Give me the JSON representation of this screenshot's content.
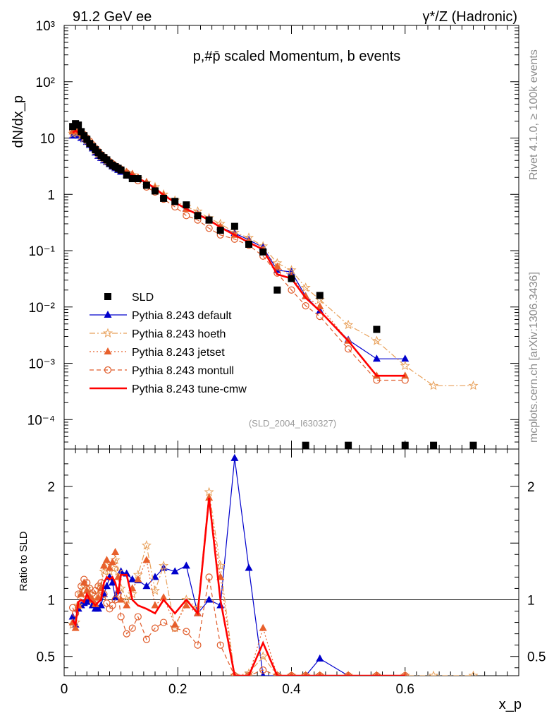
{
  "header": {
    "left": "91.2 GeV ee",
    "right": "γ*/Z (Hadronic)"
  },
  "side_texts": {
    "rivet": "Rivet 4.1.0, ≥ 100k events",
    "mcplots": "mcplots.cern.ch [arXiv:1306.3436]"
  },
  "chart_data": {
    "type": "line",
    "title": "p,#p̄ scaled Momentum, b events",
    "analysis_id": "(SLD_2004_I630327)",
    "xlabel": "x_p",
    "ylabel_main": "dN/dx_p",
    "ylabel_ratio": "Ratio to SLD",
    "xlim": [
      0,
      0.8
    ],
    "ylim_main_log": [
      3e-05,
      1000
    ],
    "ylim_ratio": [
      0.33,
      2.33
    ],
    "x_ticks": [
      "0",
      "0.2",
      "0.4",
      "0.6"
    ],
    "y_ticks_main": [
      "10⁻⁴",
      "10⁻³",
      "10⁻²",
      "10⁻¹",
      "1",
      "10",
      "10²",
      "10³"
    ],
    "y_ticks_ratio": [
      "0.5",
      "1",
      "2"
    ],
    "legend": [
      "SLD",
      "Pythia 8.243 default",
      "Pythia 8.243 hoeth",
      "Pythia 8.243 jetset",
      "Pythia 8.243 montull",
      "Pythia 8.243 tune-cmw"
    ],
    "x": [
      0.015,
      0.02,
      0.025,
      0.03,
      0.035,
      0.04,
      0.045,
      0.05,
      0.055,
      0.06,
      0.065,
      0.07,
      0.075,
      0.08,
      0.085,
      0.09,
      0.095,
      0.1,
      0.11,
      0.12,
      0.13,
      0.145,
      0.16,
      0.175,
      0.195,
      0.215,
      0.235,
      0.255,
      0.275,
      0.3,
      0.325,
      0.35,
      0.375,
      0.4,
      0.425,
      0.45,
      0.5,
      0.55,
      0.6
    ],
    "data": {
      "name": "SLD",
      "x": [
        0.015,
        0.02,
        0.025,
        0.03,
        0.035,
        0.04,
        0.045,
        0.05,
        0.055,
        0.06,
        0.065,
        0.07,
        0.075,
        0.08,
        0.085,
        0.09,
        0.095,
        0.1,
        0.11,
        0.12,
        0.13,
        0.145,
        0.16,
        0.175,
        0.195,
        0.215,
        0.235,
        0.255,
        0.275,
        0.3,
        0.325,
        0.35,
        0.375,
        0.4,
        0.425,
        0.45,
        0.5,
        0.55,
        0.6,
        0.65,
        0.72
      ],
      "values": [
        16,
        18,
        17,
        13,
        11,
        9.5,
        8,
        7,
        6.2,
        5.5,
        4.9,
        4.5,
        4.1,
        3.6,
        3.3,
        3.1,
        2.9,
        2.7,
        2.2,
        1.9,
        1.9,
        1.45,
        1.15,
        0.85,
        0.75,
        0.65,
        0.42,
        0.35,
        0.23,
        0.27,
        0.13,
        0.095,
        0.02,
        0.032,
        3.5e-05,
        0.016,
        3.5e-05,
        0.004,
        3.5e-05,
        3.5e-05,
        3.5e-05
      ]
    },
    "series": [
      {
        "name": "Pythia 8.243 default",
        "color": "#0000cc",
        "marker": "triangle",
        "dash": "solid",
        "x": [
          0.015,
          0.02,
          0.025,
          0.03,
          0.035,
          0.04,
          0.045,
          0.05,
          0.055,
          0.06,
          0.065,
          0.07,
          0.075,
          0.08,
          0.085,
          0.09,
          0.095,
          0.1,
          0.11,
          0.12,
          0.13,
          0.145,
          0.16,
          0.175,
          0.195,
          0.215,
          0.235,
          0.255,
          0.275,
          0.3,
          0.325,
          0.35,
          0.375,
          0.4,
          0.425,
          0.45,
          0.5,
          0.55,
          0.6
        ],
        "values": [
          11,
          12,
          11,
          10,
          9.5,
          8.5,
          7.5,
          6.5,
          5.5,
          4.8,
          4.4,
          4.0,
          3.7,
          3.4,
          3.1,
          2.9,
          2.7,
          2.5,
          2.2,
          2.1,
          1.85,
          1.55,
          1.25,
          0.95,
          0.72,
          0.56,
          0.45,
          0.36,
          0.26,
          0.205,
          0.155,
          0.115,
          0.045,
          0.042,
          0.0155,
          0.0085,
          0.0026,
          0.0012,
          0.0012
        ],
        "ratio": [
          0.85,
          0.78,
          0.92,
          0.95,
          0.97,
          0.98,
          1.0,
          0.95,
          0.92,
          0.92,
          0.95,
          1.05,
          1.12,
          1.2,
          1.15,
          1.02,
          1.08,
          1.25,
          1.23,
          1.18,
          1.17,
          1.12,
          1.2,
          1.28,
          1.25,
          1.3,
          0.88,
          1.0,
          0.95,
          2.25,
          1.28,
          0.3,
          0.3,
          0.3,
          0.3,
          0.48,
          0.3,
          0.3,
          0.3
        ]
      },
      {
        "name": "Pythia 8.243 hoeth",
        "color": "#e8a05a",
        "marker": "star",
        "dash": "dashdot",
        "x": [
          0.015,
          0.02,
          0.025,
          0.03,
          0.035,
          0.04,
          0.045,
          0.05,
          0.055,
          0.06,
          0.065,
          0.07,
          0.075,
          0.08,
          0.085,
          0.09,
          0.095,
          0.1,
          0.11,
          0.12,
          0.13,
          0.145,
          0.16,
          0.175,
          0.195,
          0.215,
          0.235,
          0.255,
          0.275,
          0.3,
          0.325,
          0.35,
          0.375,
          0.4,
          0.425,
          0.45,
          0.5,
          0.55,
          0.6,
          0.65,
          0.72
        ],
        "values": [
          12,
          13,
          12.5,
          11,
          10,
          9,
          8,
          7,
          6,
          5.2,
          4.7,
          4.3,
          3.9,
          3.6,
          3.3,
          3.1,
          2.9,
          2.7,
          2.4,
          2.2,
          1.9,
          1.6,
          1.35,
          1.0,
          0.78,
          0.6,
          0.5,
          0.38,
          0.3,
          0.21,
          0.17,
          0.12,
          0.06,
          0.045,
          0.022,
          0.0135,
          0.0048,
          0.0025,
          0.0009,
          0.0004,
          0.0004
        ],
        "ratio": [
          0.78,
          0.8,
          0.95,
          1.05,
          1.12,
          1.1,
          1.05,
          1.0,
          0.98,
          1.05,
          1.12,
          1.25,
          1.3,
          1.25,
          1.28,
          1.35,
          1.25,
          1.1,
          1.0,
          1.05,
          1.22,
          1.48,
          1.08,
          1.3,
          0.75,
          1.0,
          0.93,
          1.95,
          1.3,
          0.3,
          0.35,
          0.5,
          0.3,
          0.3,
          0.3,
          0.3,
          0.3,
          0.3,
          0.3,
          0.3,
          0.3
        ]
      },
      {
        "name": "Pythia 8.243 jetset",
        "color": "#e8602c",
        "marker": "triangle",
        "dash": "dotted",
        "x": [
          0.015,
          0.02,
          0.025,
          0.03,
          0.035,
          0.04,
          0.045,
          0.05,
          0.055,
          0.06,
          0.065,
          0.07,
          0.075,
          0.08,
          0.085,
          0.09,
          0.095,
          0.1,
          0.11,
          0.12,
          0.13,
          0.145,
          0.16,
          0.175,
          0.195,
          0.215,
          0.235,
          0.255,
          0.275,
          0.3,
          0.325,
          0.35,
          0.375,
          0.4,
          0.425,
          0.45,
          0.5,
          0.55,
          0.6
        ],
        "values": [
          13,
          14,
          13,
          12,
          11,
          9.5,
          8.5,
          7.3,
          6.4,
          5.6,
          5.0,
          4.6,
          4.2,
          3.8,
          3.5,
          3.2,
          3.0,
          2.8,
          2.5,
          2.3,
          2.0,
          1.65,
          1.3,
          0.98,
          0.72,
          0.55,
          0.44,
          0.34,
          0.27,
          0.19,
          0.145,
          0.105,
          0.052,
          0.035,
          0.0155,
          0.0102,
          0.0025,
          0.0006,
          0.0006
        ],
        "ratio": [
          0.8,
          0.75,
          0.95,
          1.05,
          1.15,
          1.08,
          1.03,
          1.0,
          0.96,
          1.02,
          1.1,
          1.3,
          1.35,
          1.28,
          1.33,
          1.42,
          1.2,
          1.0,
          0.95,
          1.1,
          1.18,
          1.35,
          0.95,
          1.02,
          0.78,
          0.95,
          0.88,
          1.9,
          1.2,
          0.3,
          0.3,
          0.75,
          0.3,
          0.3,
          0.3,
          0.3,
          0.3,
          0.3,
          0.3
        ]
      },
      {
        "name": "Pythia 8.243 montull",
        "color": "#e05c2a",
        "marker": "circle",
        "dash": "dashed",
        "x": [
          0.015,
          0.02,
          0.025,
          0.03,
          0.035,
          0.04,
          0.045,
          0.05,
          0.055,
          0.06,
          0.065,
          0.07,
          0.075,
          0.08,
          0.085,
          0.09,
          0.095,
          0.1,
          0.11,
          0.12,
          0.13,
          0.145,
          0.16,
          0.175,
          0.195,
          0.215,
          0.235,
          0.255,
          0.275,
          0.3,
          0.325,
          0.35,
          0.375,
          0.4,
          0.425,
          0.45,
          0.5,
          0.55,
          0.6
        ],
        "values": [
          14,
          15,
          14,
          12.5,
          11.5,
          10,
          8.8,
          7.6,
          6.6,
          5.8,
          5.1,
          4.6,
          4.2,
          3.8,
          3.5,
          3.2,
          3.0,
          2.8,
          2.4,
          2.1,
          1.75,
          1.35,
          1.1,
          0.82,
          0.6,
          0.42,
          0.35,
          0.25,
          0.19,
          0.16,
          0.125,
          0.08,
          0.04,
          0.02,
          0.0105,
          0.0068,
          0.0018,
          0.0005,
          0.0005
        ],
        "ratio": [
          0.93,
          0.88,
          1.05,
          1.12,
          1.18,
          1.15,
          1.1,
          1.06,
          1.08,
          1.12,
          1.15,
          1.05,
          0.97,
          0.92,
          0.95,
          1.0,
          1.05,
          0.85,
          0.7,
          0.75,
          0.85,
          0.65,
          0.75,
          0.8,
          0.75,
          0.72,
          0.6,
          1.2,
          0.6,
          0.3,
          0.3,
          0.38,
          0.3,
          0.3,
          0.3,
          0.3,
          0.3,
          0.3,
          0.3
        ]
      },
      {
        "name": "Pythia 8.243 tune-cmw",
        "color": "#ff0000",
        "marker": "none",
        "dash": "solid",
        "x": [
          0.015,
          0.02,
          0.025,
          0.03,
          0.035,
          0.04,
          0.045,
          0.05,
          0.055,
          0.06,
          0.065,
          0.07,
          0.075,
          0.08,
          0.085,
          0.09,
          0.095,
          0.1,
          0.11,
          0.12,
          0.13,
          0.145,
          0.16,
          0.175,
          0.195,
          0.215,
          0.235,
          0.255,
          0.275,
          0.3,
          0.325,
          0.35,
          0.375,
          0.4,
          0.425,
          0.45,
          0.5,
          0.55,
          0.6
        ],
        "values": [
          12.5,
          13.5,
          12.5,
          11.5,
          10.5,
          9.2,
          8.2,
          7.1,
          6.2,
          5.4,
          4.9,
          4.4,
          4.0,
          3.7,
          3.4,
          3.1,
          2.9,
          2.7,
          2.4,
          2.2,
          1.95,
          1.6,
          1.28,
          0.97,
          0.72,
          0.55,
          0.44,
          0.35,
          0.26,
          0.19,
          0.14,
          0.105,
          0.038,
          0.032,
          0.0145,
          0.0085,
          0.0025,
          0.0006,
          0.0006
        ],
        "ratio": [
          0.82,
          0.78,
          0.98,
          1.0,
          0.98,
          1.05,
          1.0,
          0.98,
          0.95,
          0.98,
          1.0,
          1.15,
          1.2,
          1.18,
          1.2,
          1.15,
          1.05,
          1.22,
          1.22,
          1.0,
          0.95,
          0.92,
          0.88,
          1.0,
          0.88,
          1.0,
          0.88,
          1.9,
          1.0,
          0.3,
          0.3,
          0.62,
          0.3,
          0.3,
          0.3,
          0.3,
          0.3,
          0.3,
          0.3
        ]
      }
    ]
  }
}
